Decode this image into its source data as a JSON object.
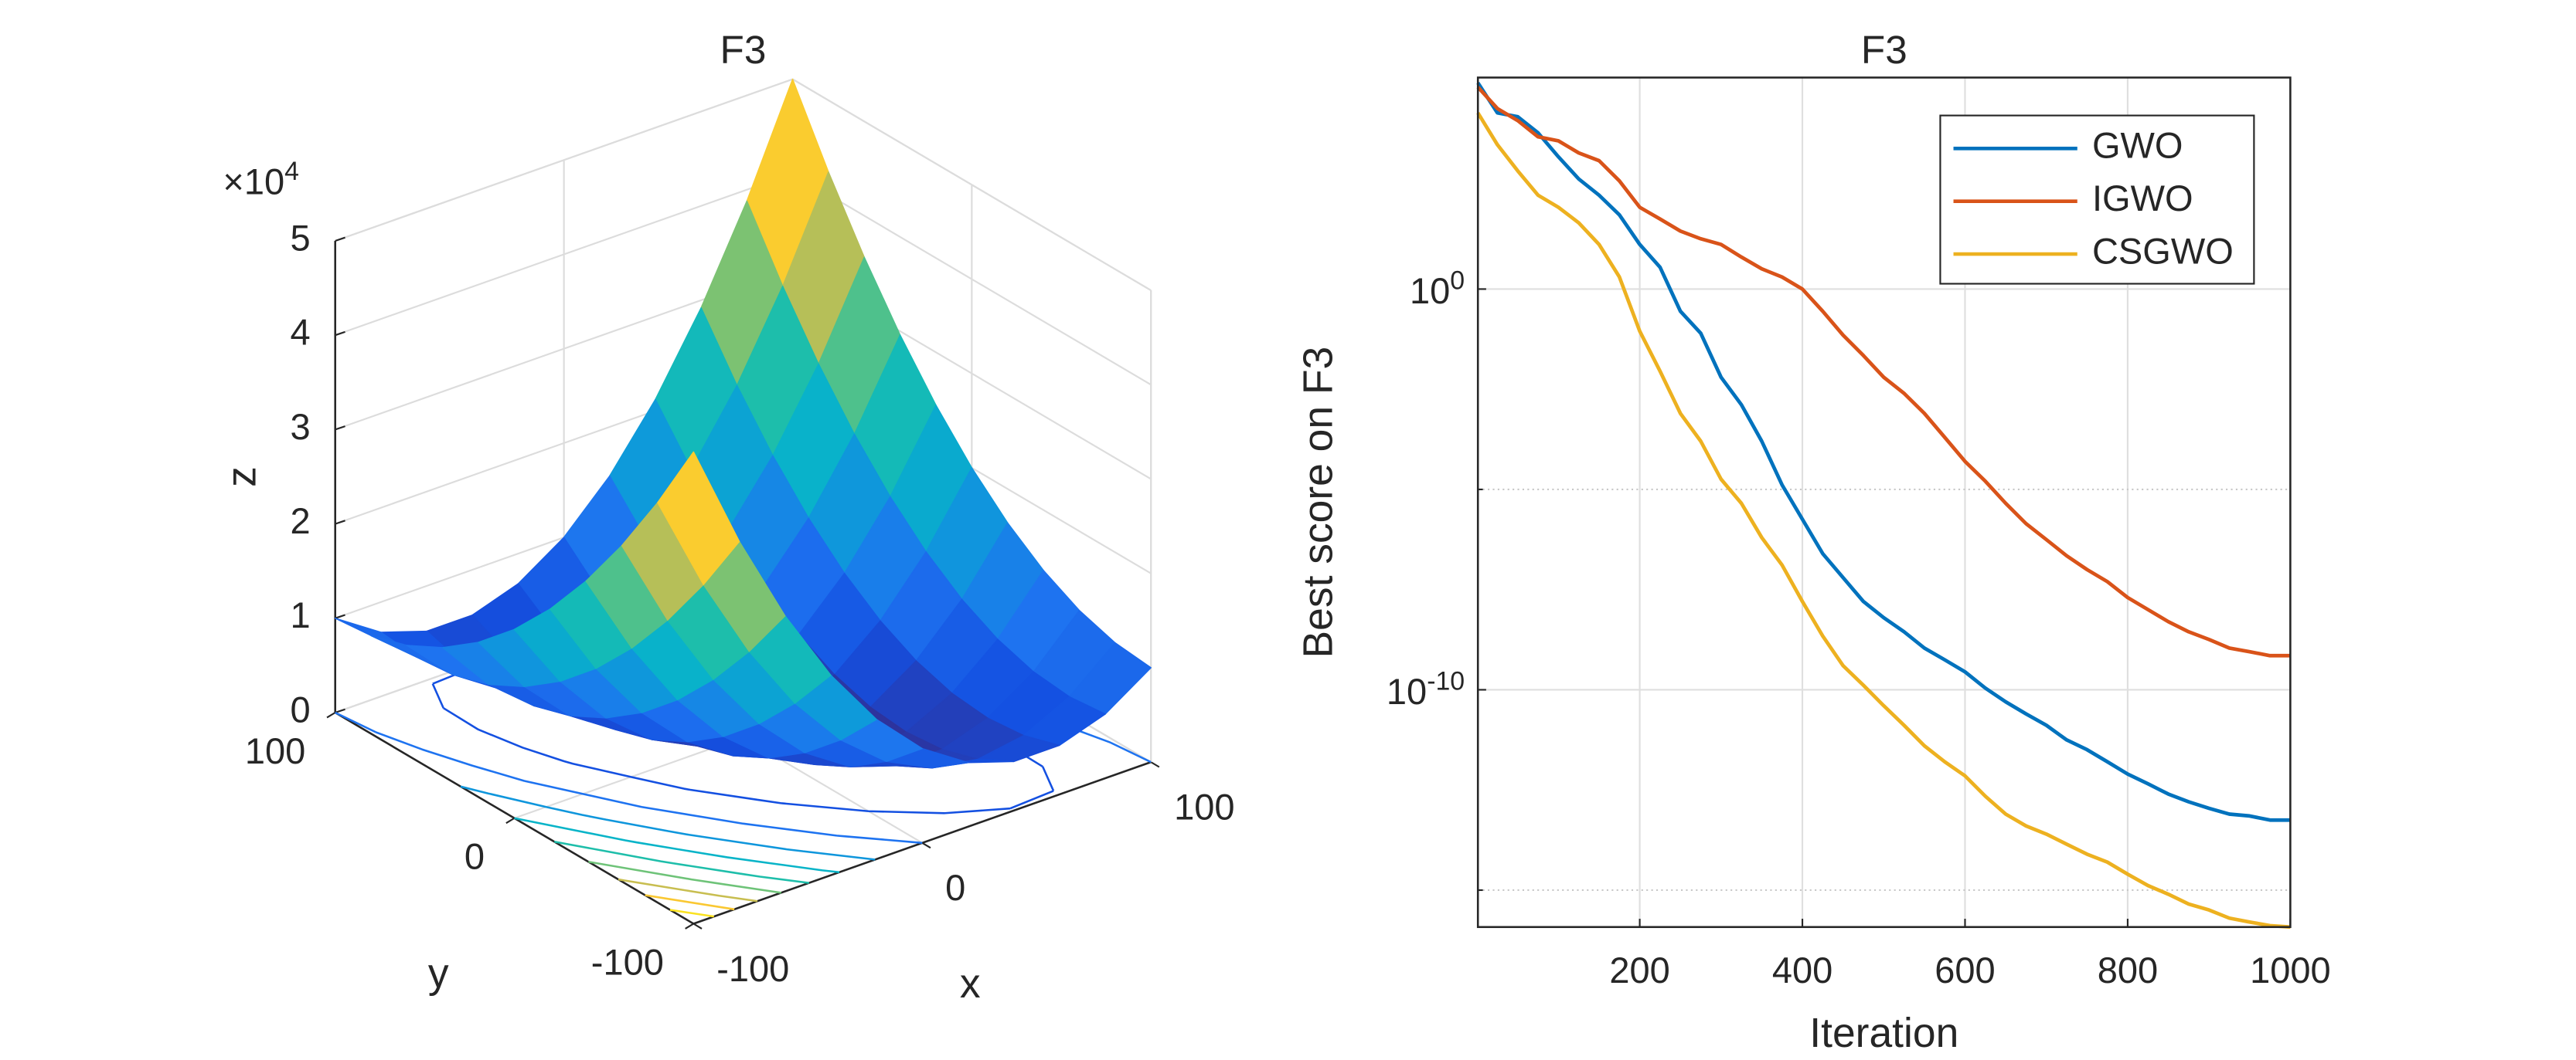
{
  "chart_data": [
    {
      "type": "surface",
      "title": "F3",
      "xlabel": "x",
      "ylabel": "y",
      "zlabel": "z",
      "xlim": [
        -100,
        100
      ],
      "ylim": [
        -100,
        100
      ],
      "zlim": [
        0,
        50000
      ],
      "xticks": [
        -100,
        0,
        100
      ],
      "yticks": [
        -100,
        0,
        100
      ],
      "zticks": [
        0,
        {
          "value": 10000,
          "label": "1"
        },
        {
          "value": 20000,
          "label": "2"
        },
        {
          "value": 30000,
          "label": "3"
        },
        {
          "value": 40000,
          "label": "4"
        },
        {
          "value": 50000,
          "label": "5"
        }
      ],
      "z_multiplier": "×10^4",
      "colormap": "parula",
      "grid": true,
      "x": [
        -100,
        -80,
        -60,
        -40,
        -20,
        0,
        20,
        40,
        60,
        80,
        100
      ],
      "y": [
        -100,
        -80,
        -60,
        -40,
        -20,
        0,
        20,
        40,
        60,
        80,
        100
      ],
      "z": [
        [
          50000,
          38800,
          29200,
          21200,
          14800,
          10000,
          6800,
          5200,
          5200,
          6800,
          10000
        ],
        [
          42400,
          32000,
          23200,
          16000,
          10400,
          6400,
          4000,
          3200,
          4000,
          6400,
          10400
        ],
        [
          35600,
          26000,
          18000,
          11600,
          6800,
          3600,
          2000,
          2000,
          3600,
          6800,
          11600
        ],
        [
          29600,
          20800,
          13600,
          8000,
          4000,
          1600,
          800,
          1600,
          4000,
          8000,
          13600
        ],
        [
          24400,
          16400,
          10000,
          5200,
          2000,
          400,
          400,
          2000,
          5200,
          10000,
          16400
        ],
        [
          20000,
          12800,
          7200,
          3200,
          800,
          0,
          800,
          3200,
          7200,
          12800,
          20000
        ],
        [
          16400,
          10000,
          5200,
          2000,
          400,
          400,
          2000,
          5200,
          10000,
          16400,
          24400
        ],
        [
          13600,
          8000,
          4000,
          1600,
          800,
          1600,
          4000,
          8000,
          13600,
          20800,
          29600
        ],
        [
          11600,
          6800,
          3600,
          2000,
          2000,
          3600,
          6800,
          11600,
          18000,
          26000,
          35600
        ],
        [
          10400,
          6400,
          4000,
          3200,
          4000,
          6400,
          10400,
          16000,
          23200,
          32000,
          42400
        ],
        [
          10000,
          6800,
          5200,
          5200,
          6800,
          10000,
          14800,
          21200,
          29200,
          38800,
          50000
        ]
      ],
      "contour_levels": [
        5000,
        10000,
        15000,
        20000,
        25000,
        30000,
        35000,
        40000,
        45000
      ]
    },
    {
      "type": "line",
      "title": "F3",
      "xlabel": "Iteration",
      "ylabel": "Best score on F3",
      "yscale": "log",
      "grid": true,
      "legend": "northeast",
      "xlim": [
        1,
        1000
      ],
      "ylim": [
        1.2e-16,
        190000.0
      ],
      "xticks": [
        200,
        400,
        600,
        800,
        1000
      ],
      "yticks": [
        {
          "value": 1e-10,
          "label": "10^-10"
        },
        {
          "value": 1,
          "label": "10^0"
        }
      ],
      "yminorticks": [
        1e-15,
        1e-05
      ],
      "x": [
        1,
        25,
        50,
        75,
        100,
        125,
        150,
        175,
        200,
        225,
        250,
        275,
        300,
        325,
        350,
        375,
        400,
        425,
        450,
        475,
        500,
        525,
        550,
        575,
        600,
        625,
        650,
        675,
        700,
        725,
        750,
        775,
        800,
        825,
        850,
        875,
        900,
        925,
        950,
        975,
        1000
      ],
      "series": [
        {
          "name": "GWO",
          "color": "#0072bd",
          "values": [
            140000.0,
            25000.0,
            20000.0,
            7900.0,
            2000.0,
            560.0,
            220.0,
            71,
            13,
            3.5,
            0.28,
            0.079,
            0.0063,
            0.0013,
            0.00016,
            1.3e-05,
            1.8e-06,
            2.5e-07,
            6.3e-08,
            1.6e-08,
            6.3e-09,
            2.8e-09,
            1.1e-09,
            5.6e-10,
            2.8e-10,
            1.1e-10,
            5e-11,
            2.5e-11,
            1.3e-11,
            5.6e-12,
            3.2e-12,
            1.6e-12,
            7.9e-13,
            4.5e-13,
            2.5e-13,
            1.6e-13,
            1.1e-13,
            7.9e-14,
            7.1e-14,
            5.6e-14,
            5.6e-14
          ]
        },
        {
          "name": "IGWO",
          "color": "#d95319",
          "values": [
            110000.0,
            32000.0,
            16000.0,
            6300.0,
            5000.0,
            2500.0,
            1600.0,
            500.0,
            110.0,
            56,
            28,
            18,
            13,
            6.3,
            3.2,
            2,
            1,
            0.28,
            0.071,
            0.022,
            0.0063,
            0.0025,
            0.00079,
            0.0002,
            5e-05,
            1.6e-05,
            4.5e-06,
            1.4e-06,
            5.6e-07,
            2.2e-07,
            1e-07,
            5e-08,
            2e-08,
            1e-08,
            5e-09,
            2.8e-09,
            1.8e-09,
            1.1e-09,
            8.9e-10,
            7.1e-10,
            7.1e-10
          ]
        },
        {
          "name": "CSGWO",
          "color": "#edb120",
          "values": [
            25000.0,
            4000.0,
            890.0,
            220.0,
            110.0,
            45,
            13,
            2,
            0.089,
            0.0089,
            0.00079,
            0.00016,
            1.8e-05,
            4.5e-06,
            6.3e-07,
            1.3e-07,
            1.6e-08,
            2.2e-09,
            4e-10,
            1.3e-10,
            4e-11,
            1.3e-11,
            4e-12,
            1.6e-12,
            7.1e-13,
            2.2e-13,
            7.9e-14,
            4e-14,
            2.5e-14,
            1.4e-14,
            7.9e-15,
            5e-15,
            2.5e-15,
            1.3e-15,
            7.9e-16,
            4.5e-16,
            3.2e-16,
            2e-16,
            1.6e-16,
            1.3e-16,
            1.2e-16
          ]
        }
      ]
    }
  ]
}
